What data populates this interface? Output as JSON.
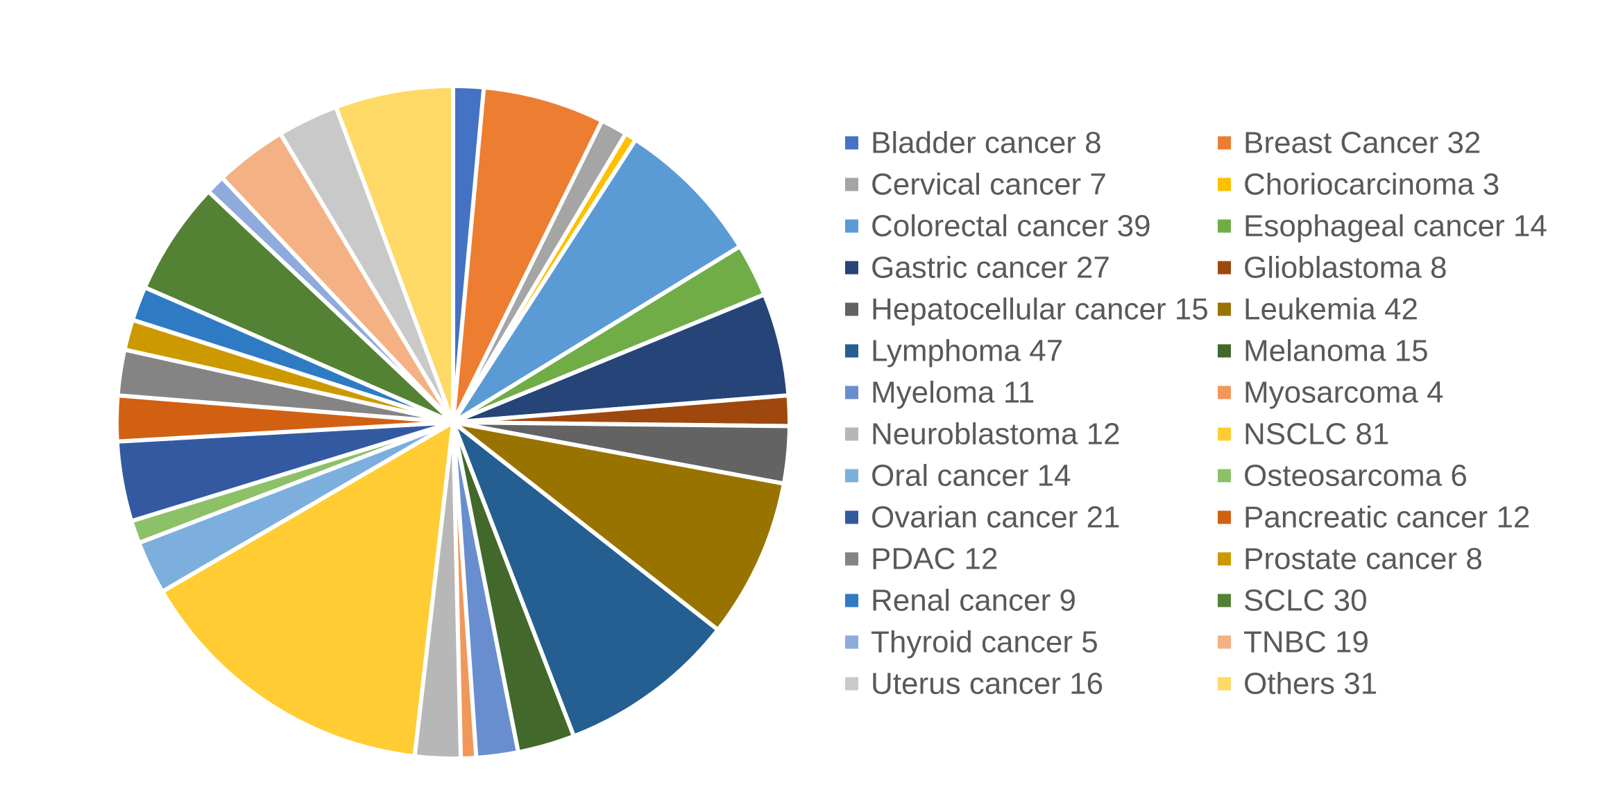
{
  "chart_data": {
    "type": "pie",
    "title": "",
    "legend_position": "right",
    "slices": [
      {
        "label": "Bladder cancer",
        "value": 8,
        "color": "#4472C4",
        "legend_text": "Bladder cancer 8"
      },
      {
        "label": "Breast Cancer",
        "value": 32,
        "color": "#ED7D31",
        "legend_text": "Breast Cancer 32"
      },
      {
        "label": "Cervical cancer",
        "value": 7,
        "color": "#A5A5A5",
        "legend_text": "Cervical cancer 7"
      },
      {
        "label": "Choriocarcinoma",
        "value": 3,
        "color": "#FFC000",
        "legend_text": "Choriocarcinoma 3"
      },
      {
        "label": "Colorectal cancer",
        "value": 39,
        "color": "#5B9BD5",
        "legend_text": "Colorectal cancer 39"
      },
      {
        "label": "Esophageal cancer",
        "value": 14,
        "color": "#70AD47",
        "legend_text": "Esophageal cancer 14"
      },
      {
        "label": "Gastric cancer",
        "value": 27,
        "color": "#264478",
        "legend_text": "Gastric cancer 27"
      },
      {
        "label": "Glioblastoma",
        "value": 8,
        "color": "#9E480E",
        "legend_text": "Glioblastoma 8"
      },
      {
        "label": "Hepatocellular cancer",
        "value": 15,
        "color": "#636363",
        "legend_text": "Hepatocellular cancer 15"
      },
      {
        "label": "Leukemia",
        "value": 42,
        "color": "#997300",
        "legend_text": "Leukemia 42"
      },
      {
        "label": "Lymphoma",
        "value": 47,
        "color": "#255E91",
        "legend_text": "Lymphoma 47"
      },
      {
        "label": "Melanoma",
        "value": 15,
        "color": "#43682B",
        "legend_text": "Melanoma 15"
      },
      {
        "label": "Myeloma",
        "value": 11,
        "color": "#698ED0",
        "legend_text": "Myeloma 11"
      },
      {
        "label": "Myosarcoma",
        "value": 4,
        "color": "#F1975A",
        "legend_text": "Myosarcoma 4"
      },
      {
        "label": "Neuroblastoma",
        "value": 12,
        "color": "#B7B7B7",
        "legend_text": "Neuroblastoma 12"
      },
      {
        "label": "NSCLC",
        "value": 81,
        "color": "#FFCD33",
        "legend_text": "NSCLC 81"
      },
      {
        "label": "Oral cancer",
        "value": 14,
        "color": "#7CAFDD",
        "legend_text": "Oral cancer 14"
      },
      {
        "label": "Osteosarcoma",
        "value": 6,
        "color": "#8CC168",
        "legend_text": "Osteosarcoma 6"
      },
      {
        "label": "Ovarian cancer",
        "value": 21,
        "color": "#335AA1",
        "legend_text": "Ovarian cancer 21"
      },
      {
        "label": "Pancreatic cancer",
        "value": 12,
        "color": "#D26012",
        "legend_text": "Pancreatic cancer 12"
      },
      {
        "label": "PDAC",
        "value": 12,
        "color": "#848484",
        "legend_text": "PDAC 12"
      },
      {
        "label": "Prostate cancer",
        "value": 8,
        "color": "#CC9A00",
        "legend_text": "Prostate cancer 8"
      },
      {
        "label": "Renal cancer",
        "value": 9,
        "color": "#2E7BC4",
        "legend_text": "Renal cancer 9"
      },
      {
        "label": "SCLC",
        "value": 30,
        "color": "#548235",
        "legend_text": "SCLC 30"
      },
      {
        "label": "Thyroid cancer",
        "value": 5,
        "color": "#8FAADC",
        "legend_text": "Thyroid cancer 5"
      },
      {
        "label": "TNBC",
        "value": 19,
        "color": "#F4B183",
        "legend_text": "TNBC 19"
      },
      {
        "label": "Uterus cancer",
        "value": 16,
        "color": "#C9C9C9",
        "legend_text": "Uterus cancer 16"
      },
      {
        "label": "Others",
        "value": 31,
        "color": "#FFD966",
        "legend_text": "Others 31"
      }
    ]
  }
}
